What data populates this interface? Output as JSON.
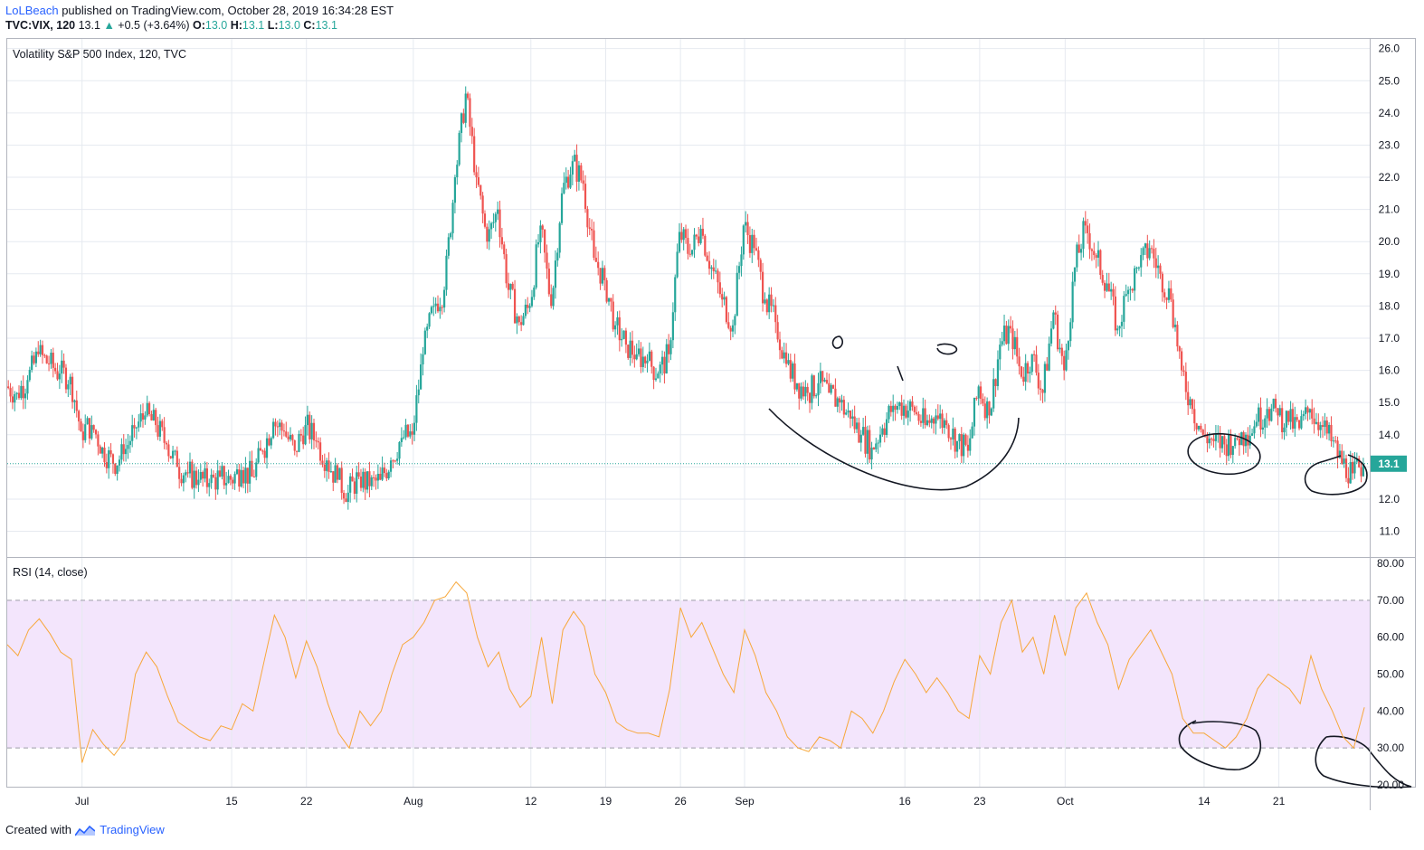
{
  "header": {
    "author": "LoLBeach",
    "published": "published on TradingView.com, October 28, 2019 16:34:28 EST",
    "symbol": "TVC:VIX, 120",
    "last": "13.1",
    "change": "+0.5 (+3.64%)",
    "o_label": "O:",
    "o_value": "13.0",
    "h_label": "H:",
    "h_value": "13.1",
    "l_label": "L:",
    "l_value": "13.0",
    "c_label": "C:",
    "c_value": "13.1"
  },
  "footer": {
    "created_with": "Created with",
    "brand": "TradingView"
  },
  "colors": {
    "up": "#26a69a",
    "down": "#ef5350",
    "rsi": "#f7a73a",
    "rsi_band": "#f3e5fc",
    "grid": "#e6eaf0",
    "price_line": "#26a69a"
  },
  "chart_data": [
    {
      "type": "candlestick",
      "title": "Volatility S&P 500 Index, 120, TVC",
      "current_price": 13.1,
      "current_price_label": "13.1",
      "ylim": [
        10.2,
        26.3
      ],
      "y_ticks": [
        11.0,
        12.0,
        13.0,
        14.0,
        15.0,
        16.0,
        17.0,
        18.0,
        19.0,
        20.0,
        21.0,
        22.0,
        23.0,
        24.0,
        25.0,
        26.0
      ],
      "y_tick_labels": [
        "11.0",
        "12.0",
        "13.0",
        "14.0",
        "15.0",
        "16.0",
        "17.0",
        "18.0",
        "19.0",
        "20.0",
        "21.0",
        "22.0",
        "23.0",
        "24.0",
        "25.0",
        "26.0"
      ],
      "x_ticks": [
        "Jul",
        "15",
        "22",
        "Aug",
        "12",
        "19",
        "26",
        "Sep",
        "16",
        "23",
        "Oct",
        "14",
        "21"
      ],
      "x_tick_days": [
        0,
        14,
        21,
        31,
        42,
        49,
        56,
        62,
        77,
        84,
        92,
        105,
        112
      ],
      "x_range_days": [
        -7,
        120.5
      ],
      "series": [
        {
          "name": "VIX close (approx.)",
          "points": [
            [
              -7.0,
              15.5
            ],
            [
              -6.0,
              15.3
            ],
            [
              -5.0,
              15.7
            ],
            [
              -4.0,
              16.5
            ],
            [
              -3.0,
              16.2
            ],
            [
              -2.0,
              15.9
            ],
            [
              -1.0,
              15.8
            ],
            [
              0.0,
              14.1
            ],
            [
              1.0,
              14.3
            ],
            [
              2.0,
              13.6
            ],
            [
              3.0,
              13.1
            ],
            [
              4.0,
              13.4
            ],
            [
              5.0,
              14.2
            ],
            [
              6.0,
              14.6
            ],
            [
              7.0,
              14.3
            ],
            [
              8.0,
              13.7
            ],
            [
              9.0,
              13.0
            ],
            [
              10.0,
              12.8
            ],
            [
              11.0,
              12.6
            ],
            [
              12.0,
              12.5
            ],
            [
              13.0,
              12.7
            ],
            [
              14.0,
              12.6
            ],
            [
              15.0,
              12.9
            ],
            [
              16.0,
              12.7
            ],
            [
              17.0,
              13.5
            ],
            [
              18.0,
              14.4
            ],
            [
              19.0,
              14.1
            ],
            [
              20.0,
              13.5
            ],
            [
              21.0,
              14.3
            ],
            [
              22.0,
              13.8
            ],
            [
              23.0,
              13.2
            ],
            [
              24.0,
              12.6
            ],
            [
              25.0,
              12.2
            ],
            [
              26.0,
              12.7
            ],
            [
              27.0,
              12.4
            ],
            [
              28.0,
              12.6
            ],
            [
              29.0,
              13.2
            ],
            [
              30.0,
              13.9
            ],
            [
              31.0,
              14.0
            ],
            [
              32.0,
              16.5
            ],
            [
              33.0,
              18.0
            ],
            [
              34.0,
              18.5
            ],
            [
              35.0,
              22.0
            ],
            [
              36.0,
              24.6
            ],
            [
              37.0,
              22.0
            ],
            [
              38.0,
              20.0
            ],
            [
              39.0,
              21.0
            ],
            [
              40.0,
              18.5
            ],
            [
              41.0,
              17.5
            ],
            [
              42.0,
              18.0
            ],
            [
              43.0,
              20.5
            ],
            [
              44.0,
              18.0
            ],
            [
              45.0,
              21.5
            ],
            [
              46.0,
              22.5
            ],
            [
              47.0,
              21.8
            ],
            [
              48.0,
              19.5
            ],
            [
              49.0,
              18.8
            ],
            [
              50.0,
              17.4
            ],
            [
              51.0,
              16.8
            ],
            [
              52.0,
              16.5
            ],
            [
              53.0,
              16.3
            ],
            [
              54.0,
              15.9
            ],
            [
              55.0,
              16.5
            ],
            [
              56.0,
              20.3
            ],
            [
              57.0,
              19.6
            ],
            [
              58.0,
              20.4
            ],
            [
              59.0,
              19.2
            ],
            [
              60.0,
              18.2
            ],
            [
              61.0,
              17.4
            ],
            [
              62.0,
              20.5
            ],
            [
              63.0,
              19.8
            ],
            [
              64.0,
              18.2
            ],
            [
              65.0,
              17.5
            ],
            [
              66.0,
              16.2
            ],
            [
              67.0,
              15.6
            ],
            [
              68.0,
              15.3
            ],
            [
              69.0,
              15.6
            ],
            [
              70.0,
              15.3
            ],
            [
              71.0,
              15.0
            ],
            [
              72.0,
              14.5
            ],
            [
              73.0,
              14.0
            ],
            [
              74.0,
              13.6
            ],
            [
              75.0,
              14.2
            ],
            [
              76.0,
              14.9
            ],
            [
              77.0,
              14.9
            ],
            [
              78.0,
              14.7
            ],
            [
              79.0,
              14.3
            ],
            [
              80.0,
              14.6
            ],
            [
              81.0,
              14.3
            ],
            [
              82.0,
              13.8
            ],
            [
              83.0,
              13.5
            ],
            [
              84.0,
              15.5
            ],
            [
              85.0,
              14.6
            ],
            [
              86.0,
              16.8
            ],
            [
              87.0,
              17.3
            ],
            [
              88.0,
              15.8
            ],
            [
              89.0,
              16.5
            ],
            [
              90.0,
              15.3
            ],
            [
              91.0,
              17.8
            ],
            [
              92.0,
              16.0
            ],
            [
              93.0,
              19.2
            ],
            [
              94.0,
              20.5
            ],
            [
              95.0,
              19.5
            ],
            [
              96.0,
              18.7
            ],
            [
              97.0,
              17.3
            ],
            [
              98.0,
              18.5
            ],
            [
              99.0,
              19.2
            ],
            [
              100.0,
              19.8
            ],
            [
              101.0,
              19.0
            ],
            [
              102.0,
              18.2
            ],
            [
              103.0,
              16.0
            ],
            [
              104.0,
              14.8
            ],
            [
              105.0,
              14.0
            ],
            [
              106.0,
              13.8
            ],
            [
              107.0,
              13.7
            ],
            [
              108.0,
              13.9
            ],
            [
              109.0,
              14.0
            ],
            [
              110.0,
              14.4
            ],
            [
              111.0,
              14.8
            ],
            [
              112.0,
              14.6
            ],
            [
              113.0,
              14.4
            ],
            [
              114.0,
              14.2
            ],
            [
              115.0,
              14.8
            ],
            [
              116.0,
              14.3
            ],
            [
              117.0,
              13.8
            ],
            [
              118.0,
              13.1
            ],
            [
              119.0,
              12.8
            ],
            [
              120.0,
              13.1
            ]
          ]
        }
      ]
    },
    {
      "type": "line",
      "title": "RSI (14, close)",
      "ylim": [
        19.5,
        81.5
      ],
      "y_ticks": [
        20,
        30,
        40,
        50,
        60,
        70,
        80
      ],
      "y_tick_labels": [
        "20.00",
        "30.00",
        "40.00",
        "50.00",
        "60.00",
        "70.00",
        "80.00"
      ],
      "band": [
        30,
        70
      ],
      "series": [
        {
          "name": "RSI (approx.)",
          "points": [
            [
              -7.0,
              58
            ],
            [
              -6.0,
              55
            ],
            [
              -5.0,
              62
            ],
            [
              -4.0,
              65
            ],
            [
              -3.0,
              61
            ],
            [
              -2.0,
              56
            ],
            [
              -1.0,
              54
            ],
            [
              0.0,
              26
            ],
            [
              1.0,
              35
            ],
            [
              2.0,
              31
            ],
            [
              3.0,
              28
            ],
            [
              4.0,
              32
            ],
            [
              5.0,
              50
            ],
            [
              6.0,
              56
            ],
            [
              7.0,
              52
            ],
            [
              8.0,
              44
            ],
            [
              9.0,
              37
            ],
            [
              10.0,
              35
            ],
            [
              11.0,
              33
            ],
            [
              12.0,
              32
            ],
            [
              13.0,
              36
            ],
            [
              14.0,
              35
            ],
            [
              15.0,
              42
            ],
            [
              16.0,
              40
            ],
            [
              17.0,
              53
            ],
            [
              18.0,
              66
            ],
            [
              19.0,
              60
            ],
            [
              20.0,
              49
            ],
            [
              21.0,
              59
            ],
            [
              22.0,
              52
            ],
            [
              23.0,
              42
            ],
            [
              24.0,
              34
            ],
            [
              25.0,
              30
            ],
            [
              26.0,
              40
            ],
            [
              27.0,
              36
            ],
            [
              28.0,
              40
            ],
            [
              29.0,
              50
            ],
            [
              30.0,
              58
            ],
            [
              31.0,
              60
            ],
            [
              32.0,
              64
            ],
            [
              33.0,
              70
            ],
            [
              34.0,
              71
            ],
            [
              35.0,
              75
            ],
            [
              36.0,
              72
            ],
            [
              37.0,
              60
            ],
            [
              38.0,
              52
            ],
            [
              39.0,
              56
            ],
            [
              40.0,
              46
            ],
            [
              41.0,
              41
            ],
            [
              42.0,
              44
            ],
            [
              43.0,
              60
            ],
            [
              44.0,
              42
            ],
            [
              45.0,
              62
            ],
            [
              46.0,
              67
            ],
            [
              47.0,
              63
            ],
            [
              48.0,
              50
            ],
            [
              49.0,
              45
            ],
            [
              50.0,
              37
            ],
            [
              51.0,
              35
            ],
            [
              52.0,
              34
            ],
            [
              53.0,
              34
            ],
            [
              54.0,
              33
            ],
            [
              55.0,
              46
            ],
            [
              56.0,
              68
            ],
            [
              57.0,
              60
            ],
            [
              58.0,
              64
            ],
            [
              59.0,
              57
            ],
            [
              60.0,
              50
            ],
            [
              61.0,
              45
            ],
            [
              62.0,
              62
            ],
            [
              63.0,
              55
            ],
            [
              64.0,
              45
            ],
            [
              65.0,
              40
            ],
            [
              66.0,
              33
            ],
            [
              67.0,
              30
            ],
            [
              68.0,
              29
            ],
            [
              69.0,
              33
            ],
            [
              70.0,
              32
            ],
            [
              71.0,
              30
            ],
            [
              72.0,
              40
            ],
            [
              73.0,
              38
            ],
            [
              74.0,
              34
            ],
            [
              75.0,
              40
            ],
            [
              76.0,
              48
            ],
            [
              77.0,
              54
            ],
            [
              78.0,
              50
            ],
            [
              79.0,
              45
            ],
            [
              80.0,
              49
            ],
            [
              81.0,
              45
            ],
            [
              82.0,
              40
            ],
            [
              83.0,
              38
            ],
            [
              84.0,
              55
            ],
            [
              85.0,
              50
            ],
            [
              86.0,
              64
            ],
            [
              87.0,
              70
            ],
            [
              88.0,
              56
            ],
            [
              89.0,
              60
            ],
            [
              90.0,
              50
            ],
            [
              91.0,
              66
            ],
            [
              92.0,
              55
            ],
            [
              93.0,
              68
            ],
            [
              94.0,
              72
            ],
            [
              95.0,
              64
            ],
            [
              96.0,
              58
            ],
            [
              97.0,
              46
            ],
            [
              98.0,
              54
            ],
            [
              99.0,
              58
            ],
            [
              100.0,
              62
            ],
            [
              101.0,
              56
            ],
            [
              102.0,
              50
            ],
            [
              103.0,
              38
            ],
            [
              104.0,
              34
            ],
            [
              105.0,
              34
            ],
            [
              106.0,
              32
            ],
            [
              107.0,
              30
            ],
            [
              108.0,
              33
            ],
            [
              109.0,
              38
            ],
            [
              110.0,
              46
            ],
            [
              111.0,
              50
            ],
            [
              112.0,
              48
            ],
            [
              113.0,
              46
            ],
            [
              114.0,
              42
            ],
            [
              115.0,
              55
            ],
            [
              116.0,
              46
            ],
            [
              117.0,
              40
            ],
            [
              118.0,
              33
            ],
            [
              119.0,
              30
            ],
            [
              120.0,
              41
            ]
          ]
        }
      ]
    }
  ]
}
